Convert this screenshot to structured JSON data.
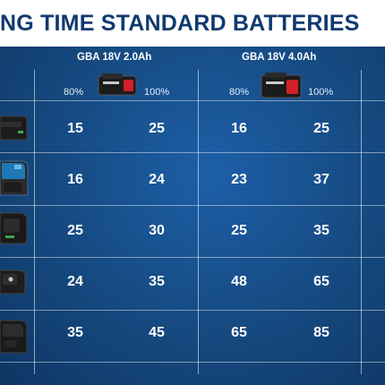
{
  "header": {
    "title": "NG TIME STANDARD BATTERIES"
  },
  "columns": [
    {
      "title": "GBA 18V 2.0Ah",
      "battery_icon": "battery-2ah-icon",
      "pct_low": "80%",
      "pct_high": "100%"
    },
    {
      "title": "GBA 18V 4.0Ah",
      "battery_icon": "battery-4ah-icon",
      "pct_low": "80%",
      "pct_high": "100%"
    }
  ],
  "rows": [
    {
      "charger_icon": "charger-icon",
      "values": [
        "15",
        "25",
        "16",
        "25"
      ]
    },
    {
      "charger_icon": "charger-icon",
      "values": [
        "16",
        "24",
        "23",
        "37"
      ]
    },
    {
      "charger_icon": "charger-icon",
      "values": [
        "25",
        "30",
        "25",
        "35"
      ]
    },
    {
      "charger_icon": "charger-icon",
      "values": [
        "24",
        "35",
        "48",
        "65"
      ]
    },
    {
      "charger_icon": "charger-icon",
      "values": [
        "35",
        "45",
        "65",
        "85"
      ]
    }
  ],
  "colors": {
    "background": "#15497f",
    "title": "#0f3a70",
    "battery_accent": "#d21f2a"
  }
}
